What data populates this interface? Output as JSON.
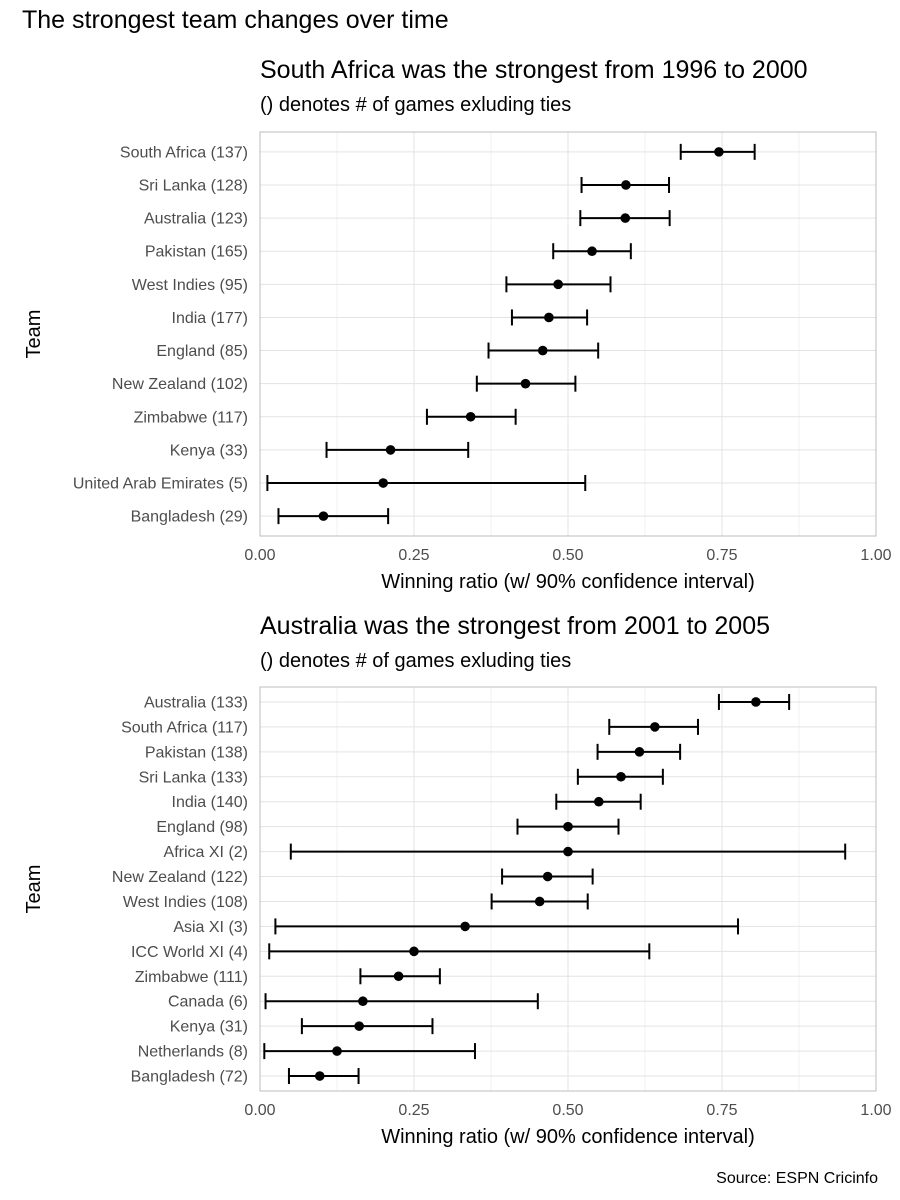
{
  "figure": {
    "title": "The strongest team changes over time",
    "caption": "Source: ESPN Cricinfo"
  },
  "chart_data": [
    {
      "type": "scatter",
      "title": "South Africa was the strongest from 1996 to 2000",
      "subtitle": "() denotes # of games exluding ties",
      "xlabel": "Winning ratio (w/ 90% confidence interval)",
      "ylabel": "Team",
      "xlim": [
        0,
        1
      ],
      "xticks": [
        "0.00",
        "0.25",
        "0.50",
        "0.75",
        "1.00"
      ],
      "grid": true,
      "categories": [
        "South Africa (137)",
        "Sri Lanka (128)",
        "Australia (123)",
        "Pakistan (165)",
        "West Indies (95)",
        "India (177)",
        "England (85)",
        "New Zealand (102)",
        "Zimbabwe (117)",
        "Kenya (33)",
        "United Arab Emirates (5)",
        "Bangladesh (29)"
      ],
      "values": [
        0.745,
        0.594,
        0.593,
        0.539,
        0.484,
        0.469,
        0.459,
        0.431,
        0.342,
        0.212,
        0.2,
        0.103
      ],
      "lower": [
        0.683,
        0.522,
        0.52,
        0.476,
        0.4,
        0.409,
        0.371,
        0.352,
        0.271,
        0.108,
        0.012,
        0.03
      ],
      "upper": [
        0.803,
        0.664,
        0.665,
        0.602,
        0.569,
        0.531,
        0.549,
        0.512,
        0.415,
        0.338,
        0.528,
        0.208
      ]
    },
    {
      "type": "scatter",
      "title": "Australia was the strongest from 2001 to 2005",
      "subtitle": "() denotes # of games exluding ties",
      "xlabel": "Winning ratio (w/ 90% confidence interval)",
      "ylabel": "Team",
      "xlim": [
        0,
        1
      ],
      "xticks": [
        "0.00",
        "0.25",
        "0.50",
        "0.75",
        "1.00"
      ],
      "grid": true,
      "categories": [
        "Australia (133)",
        "South Africa (117)",
        "Pakistan (138)",
        "Sri Lanka (133)",
        "India (140)",
        "England (98)",
        "Africa XI (2)",
        "New Zealand (122)",
        "West Indies (108)",
        "Asia XI (3)",
        "ICC World XI (4)",
        "Zimbabwe (111)",
        "Canada (6)",
        "Kenya (31)",
        "Netherlands (8)",
        "Bangladesh (72)"
      ],
      "values": [
        0.805,
        0.641,
        0.616,
        0.586,
        0.55,
        0.5,
        0.5,
        0.467,
        0.454,
        0.333,
        0.25,
        0.225,
        0.167,
        0.161,
        0.125,
        0.097
      ],
      "lower": [
        0.745,
        0.567,
        0.548,
        0.516,
        0.481,
        0.418,
        0.05,
        0.393,
        0.376,
        0.025,
        0.015,
        0.163,
        0.009,
        0.068,
        0.007,
        0.047
      ],
      "upper": [
        0.859,
        0.711,
        0.682,
        0.654,
        0.618,
        0.582,
        0.95,
        0.54,
        0.532,
        0.776,
        0.632,
        0.292,
        0.451,
        0.28,
        0.349,
        0.16
      ]
    }
  ]
}
